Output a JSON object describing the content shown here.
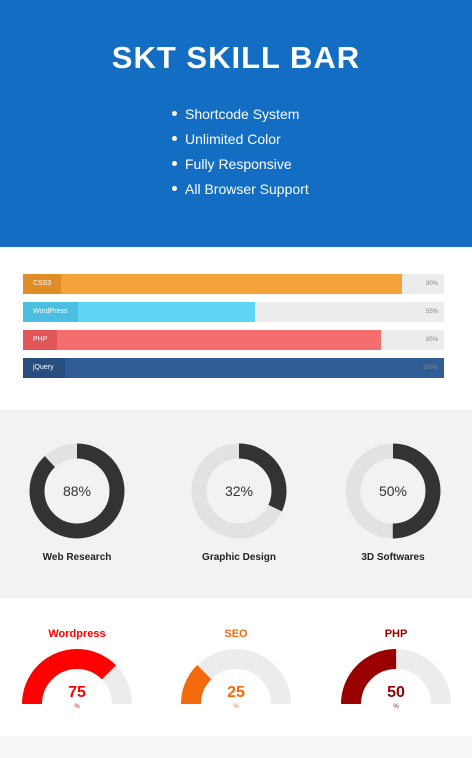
{
  "hero": {
    "title": "SKT SKILL BAR",
    "features": [
      "Shortcode System",
      "Unlimited Color",
      "Fully Responsive",
      "All Browser Support"
    ],
    "background": "#126dc3"
  },
  "skill_bars": [
    {
      "label": "CSS3",
      "percent_text": "90%",
      "value": 90,
      "color": "#f5a23b",
      "label_bg": "#e08c27"
    },
    {
      "label": "WordPress",
      "percent_text": "55%",
      "value": 55,
      "color": "#62d4f3",
      "label_bg": "#4cbfe0"
    },
    {
      "label": "PHP",
      "percent_text": "85%",
      "value": 85,
      "color": "#f46e70",
      "label_bg": "#e25558"
    },
    {
      "label": "jQuery",
      "percent_text": "100%",
      "value": 100,
      "color": "#2f5d94",
      "label_bg": "#264f80"
    }
  ],
  "circles": [
    {
      "label": "Web Research",
      "value_text": "88%",
      "value": 88,
      "color": "#333333",
      "track": "#e2e2e2"
    },
    {
      "label": "Graphic Design",
      "value_text": "32%",
      "value": 32,
      "color": "#333333",
      "track": "#e2e2e2"
    },
    {
      "label": "3D Softwares",
      "value_text": "50%",
      "value": 50,
      "color": "#333333",
      "track": "#e2e2e2"
    }
  ],
  "gauges": [
    {
      "title": "Wordpress",
      "value_text": "75",
      "unit": "%",
      "value": 75,
      "color": "#ff0000"
    },
    {
      "title": "SEO",
      "value_text": "25",
      "unit": "%",
      "value": 25,
      "color": "#f26a0c"
    },
    {
      "title": "PHP",
      "value_text": "50",
      "unit": "%",
      "value": 50,
      "color": "#990000"
    }
  ]
}
